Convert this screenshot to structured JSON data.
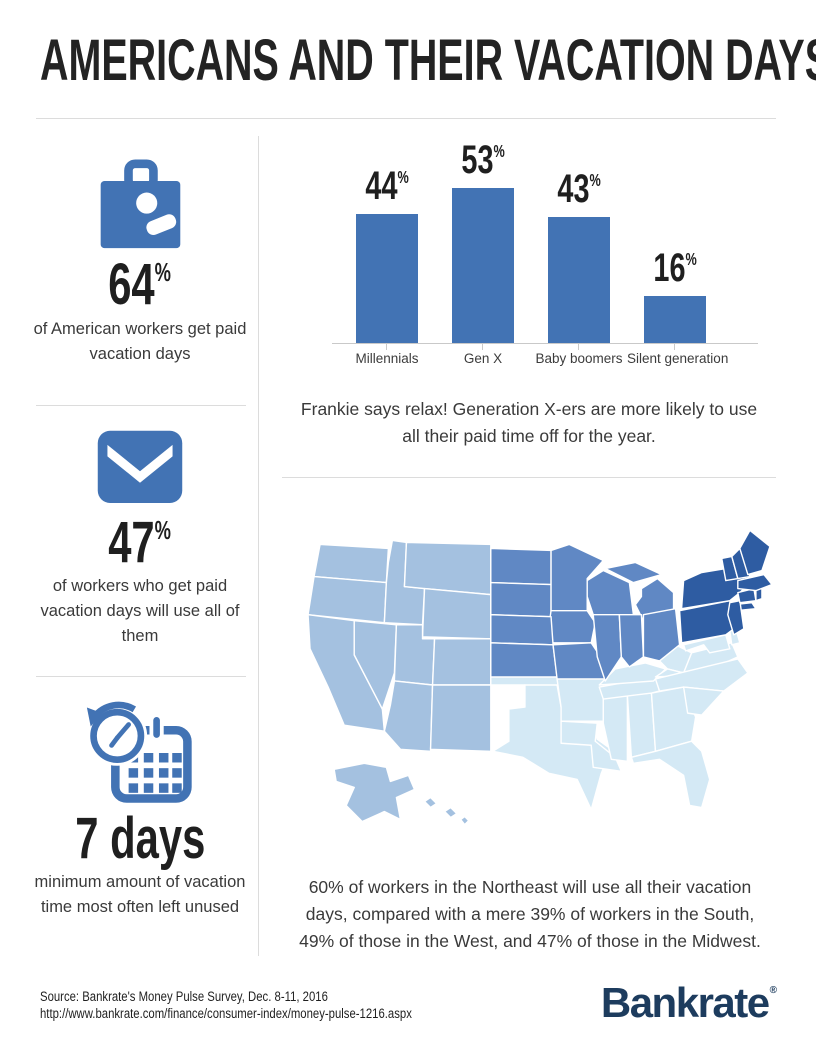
{
  "title": "AMERICANS AND THEIR VACATION DAYS",
  "stats": [
    {
      "icon": "suitcase-icon",
      "value": "64",
      "unit": "%",
      "caption": "of American workers get paid vacation days"
    },
    {
      "icon": "envelope-icon",
      "value": "47",
      "unit": "%",
      "caption": "of workers who get paid vacation days will use all of them"
    },
    {
      "icon": "clock-calendar-icon",
      "value": "7 days",
      "unit": "",
      "caption": "minimum amount of vacation time most often left unused"
    }
  ],
  "chart_data": [
    {
      "type": "bar",
      "categories": [
        "Millennials",
        "Gen X",
        "Baby boomers",
        "Silent generation"
      ],
      "values": [
        44,
        53,
        43,
        16
      ],
      "unit": "%",
      "title": "",
      "xlabel": "",
      "ylabel": "",
      "ylim": [
        0,
        60
      ],
      "grid": false,
      "bar_color": "#4273b4",
      "caption": "Frankie says relax! Generation X-ers are more likely to use all their paid time off for the year."
    },
    {
      "type": "heatmap",
      "subtype": "us-choropleth",
      "regions": [
        {
          "name": "Northeast",
          "value": 60,
          "unit": "%",
          "color": "#2e5ca2"
        },
        {
          "name": "Midwest",
          "value": 47,
          "unit": "%",
          "color": "#6088c4"
        },
        {
          "name": "West",
          "value": 49,
          "unit": "%",
          "color": "#a4c1e0"
        },
        {
          "name": "South",
          "value": 39,
          "unit": "%",
          "color": "#d4e9f5"
        }
      ],
      "caption": "60% of workers in the Northeast will use all their vacation days, compared with a mere 39% of workers in the South, 49% of those in the West, and 47% of those in the Midwest."
    }
  ],
  "map": {
    "state_regions": {
      "WA": "west",
      "OR": "west",
      "CA": "west",
      "NV": "west",
      "ID": "west",
      "MT": "west",
      "WY": "west",
      "UT": "west",
      "CO": "west",
      "AZ": "west",
      "NM": "west",
      "AK": "west",
      "HI1": "west",
      "HI2": "west",
      "HI3": "west",
      "ND": "midwest",
      "SD": "midwest",
      "NE": "midwest",
      "KS": "midwest",
      "MN": "midwest",
      "IA": "midwest",
      "MO": "midwest",
      "WI": "midwest",
      "IL": "midwest",
      "IN": "midwest",
      "OH": "midwest",
      "MI": "midwest",
      "MI_UP": "midwest",
      "PA": "northeast",
      "NY": "northeast",
      "NY_LI": "northeast",
      "NJ": "northeast",
      "CT": "northeast",
      "RI": "northeast",
      "MA": "northeast",
      "VT": "northeast",
      "NH": "northeast",
      "ME": "northeast",
      "OK": "south",
      "TX": "south",
      "AR": "south",
      "LA": "south",
      "MS": "south",
      "AL": "south",
      "GA": "south",
      "FL": "south",
      "TN": "south",
      "KY": "south",
      "WV": "south",
      "VA": "south",
      "NC": "south",
      "SC": "south",
      "MD": "south",
      "DE": "south"
    },
    "region_colors": {
      "northeast": "#2e5ca2",
      "midwest": "#6088c4",
      "west": "#a4c1e0",
      "south": "#d4e9f5"
    }
  },
  "footer": {
    "source_line1": "Source: Bankrate's Money Pulse Survey, Dec. 8-11, 2016",
    "source_line2": "http://www.bankrate.com/finance/consumer-index/money-pulse-1216.aspx",
    "logo_text": "Bankrate",
    "logo_mark": "®"
  },
  "accent_color": "#4273b4"
}
